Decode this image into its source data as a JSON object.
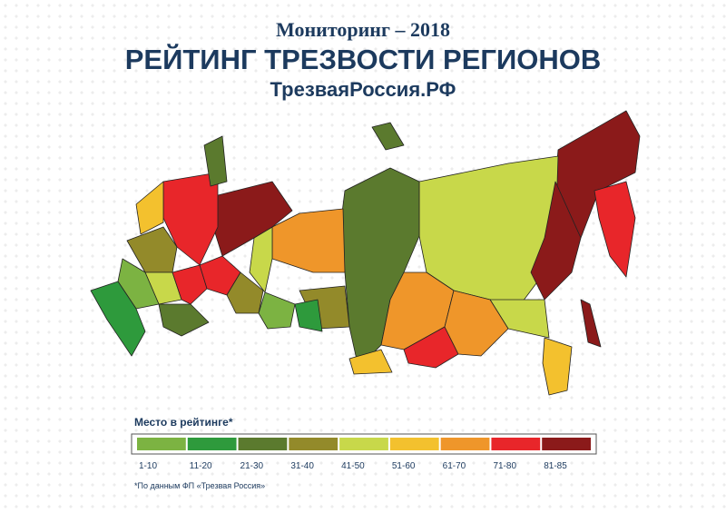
{
  "header": {
    "subtitle": "Мониторинг – 2018",
    "title": "РЕЙТИНГ ТРЕЗВОСТИ РЕГИОНОВ",
    "site": "ТрезваяРоссия.РФ"
  },
  "legend": {
    "title": "Место в рейтинге*",
    "items": [
      {
        "label": "1-10",
        "color": "#7cb342"
      },
      {
        "label": "11-20",
        "color": "#2e9a3c"
      },
      {
        "label": "21-30",
        "color": "#5b7a2e"
      },
      {
        "label": "31-40",
        "color": "#938a2a"
      },
      {
        "label": "41-50",
        "color": "#c8d84a"
      },
      {
        "label": "51-60",
        "color": "#f3c12e"
      },
      {
        "label": "61-70",
        "color": "#ef962a"
      },
      {
        "label": "71-80",
        "color": "#e8262a"
      },
      {
        "label": "81-85",
        "color": "#8b1a1a"
      }
    ]
  },
  "footnote": "*По данным ФП «Трезвая Россия»"
}
